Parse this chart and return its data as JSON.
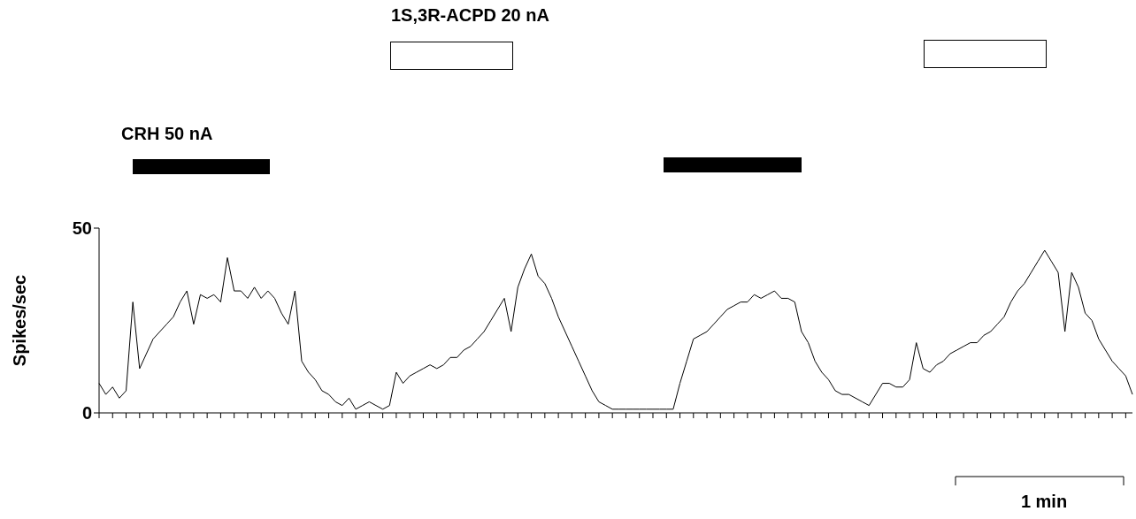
{
  "chart_data": {
    "type": "line",
    "ylabel": "Spikes/sec",
    "ylim": [
      0,
      50
    ],
    "yticks": [
      0,
      50
    ],
    "annotations": [
      "CRH 50 nA",
      "1S,3R-ACPD 20 nA",
      "1 min"
    ],
    "categories": [
      null,
      null,
      null,
      null,
      null,
      null,
      null,
      null,
      null,
      null,
      null,
      null,
      null,
      null,
      null,
      null,
      null,
      null,
      null,
      null,
      null,
      null,
      null,
      null,
      null,
      null,
      null,
      null,
      null,
      null,
      null,
      null,
      null,
      null,
      null,
      null,
      null,
      null,
      null,
      null,
      null,
      null,
      null,
      null,
      null,
      null,
      null,
      null,
      null,
      null,
      null,
      null,
      null,
      null,
      null,
      null,
      null,
      null,
      null,
      null,
      null,
      null,
      null,
      null,
      null,
      null,
      null,
      null,
      null,
      null,
      null,
      null,
      null,
      null,
      null,
      null,
      null,
      null,
      null,
      null,
      null,
      null,
      null,
      null,
      null,
      null,
      null,
      null,
      null,
      null,
      null,
      null,
      null,
      null,
      null,
      null,
      null,
      null,
      null,
      null,
      null,
      null,
      null,
      null,
      null,
      null,
      null,
      null,
      null,
      null,
      null,
      null,
      null,
      null,
      null,
      null,
      null,
      null,
      null,
      null,
      null,
      null,
      null,
      null,
      null,
      null,
      null,
      null,
      null,
      null,
      null,
      null,
      null,
      null,
      null,
      null,
      null,
      null,
      null,
      null,
      null,
      null,
      null,
      null,
      null,
      null,
      null,
      null,
      null,
      null,
      null,
      null,
      null,
      null
    ],
    "series": [
      {
        "color": "#000000",
        "values": [
          8,
          5,
          7,
          4,
          6,
          30,
          12,
          16,
          20,
          22,
          24,
          26,
          30,
          33,
          24,
          32,
          31,
          32,
          30,
          42,
          33,
          33,
          31,
          34,
          31,
          33,
          31,
          27,
          24,
          33,
          14,
          11,
          9,
          6,
          5,
          3,
          2,
          4,
          1,
          2,
          3,
          2,
          1,
          2,
          11,
          8,
          10,
          11,
          12,
          13,
          12,
          13,
          15,
          15,
          17,
          18,
          20,
          22,
          25,
          28,
          31,
          22,
          34,
          39,
          43,
          37,
          35,
          31,
          26,
          22,
          18,
          14,
          10,
          6,
          3,
          2,
          1,
          1,
          1,
          1,
          1,
          1,
          1,
          1,
          1,
          1,
          8,
          14,
          20,
          21,
          22,
          24,
          26,
          28,
          29,
          30,
          30,
          32,
          31,
          32,
          33,
          31,
          31,
          30,
          22,
          19,
          14,
          11,
          9,
          6,
          5,
          5,
          4,
          3,
          2,
          5,
          8,
          8,
          7,
          7,
          9,
          19,
          12,
          11,
          13,
          14,
          16,
          17,
          18,
          19,
          19,
          21,
          22,
          24,
          26,
          30,
          33,
          35,
          38,
          41,
          44,
          41,
          38,
          22,
          38,
          34,
          27,
          25,
          20,
          17,
          14,
          12,
          10,
          5
        ]
      }
    ]
  }
}
